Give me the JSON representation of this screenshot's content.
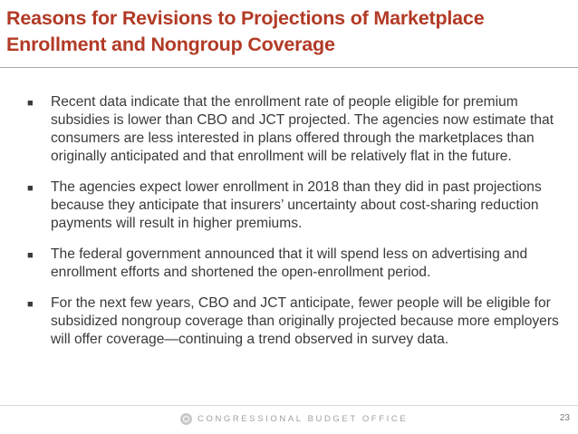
{
  "slide": {
    "title": "Reasons for Revisions to Projections of Marketplace Enrollment and Nongroup Coverage",
    "bullet_marker": "■",
    "bullets": [
      "Recent data indicate that the enrollment rate of people eligible for premium subsidies is lower than CBO and JCT projected. The agencies now estimate that consumers are less interested in plans offered through the marketplaces than originally anticipated and that enrollment will be relatively flat in the future.",
      "The agencies expect lower enrollment in 2018 than they did in past projections because they anticipate that insurers’ uncertainty about cost-sharing reduction payments will result in higher premiums.",
      "The federal government announced that it will spend less on advertising and enrollment efforts and shortened the open-enrollment period.",
      "For the next few years, CBO and JCT anticipate, fewer people will be eligible for subsidized nongroup coverage than originally projected because more employers will offer coverage—continuing a trend observed in survey data."
    ]
  },
  "footer": {
    "agency": "CONGRESSIONAL BUDGET OFFICE",
    "logo_icon": "cbo-seal-icon",
    "page_number": "23"
  },
  "colors": {
    "title": "#b23a26",
    "body_text": "#3a3a3a",
    "footer_text": "#a0a0a0"
  }
}
